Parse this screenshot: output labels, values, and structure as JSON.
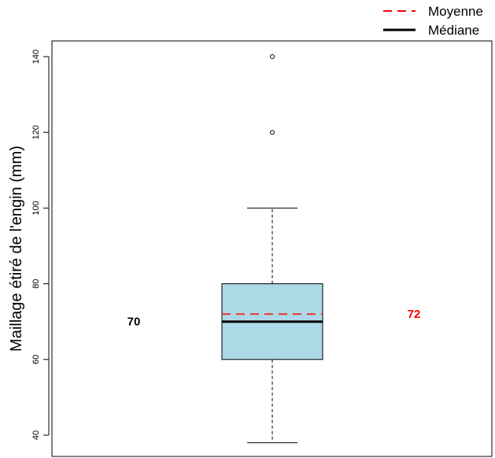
{
  "chart_data": {
    "type": "boxplot",
    "title": "",
    "xlabel": "",
    "ylabel": "Maillage étiré de l'engin (mm)",
    "ylim": [
      36,
      144
    ],
    "yticks": [
      40,
      60,
      80,
      100,
      120,
      140
    ],
    "grid": false,
    "legend_position": "top-right",
    "box": {
      "whisker_low": 38,
      "q1": 60,
      "median": 70,
      "mean": 72,
      "q3": 80,
      "whisker_high": 100,
      "outliers": [
        120,
        140
      ],
      "fill_color": "#add8e6"
    },
    "legend": [
      {
        "label": "Moyenne",
        "color": "#ff0000",
        "style": "dashed"
      },
      {
        "label": "Médiane",
        "color": "#000000",
        "style": "solid"
      }
    ],
    "annotations": {
      "median_text": "70",
      "median_color": "#000000",
      "mean_text": "72",
      "mean_color": "#ff0000"
    }
  }
}
